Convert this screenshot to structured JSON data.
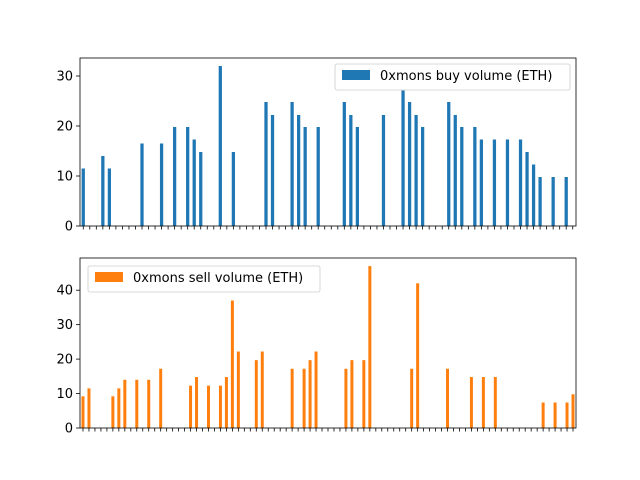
{
  "chart_data": [
    {
      "type": "bar",
      "ylim": [
        0,
        33.6
      ],
      "yticks": [
        0,
        10,
        20,
        30
      ],
      "grid": false,
      "legend": "top-right",
      "series": [
        {
          "name": "0xmons buy volume (ETH)",
          "color": "#1f77b4",
          "values": [
            11.5,
            0,
            0,
            14,
            11.5,
            0,
            0,
            0,
            0,
            16.5,
            0,
            0,
            16.5,
            0,
            19.8,
            0,
            19.8,
            17.3,
            14.8,
            0,
            0,
            32,
            0,
            14.8,
            0,
            0,
            0,
            0,
            24.8,
            22.2,
            0,
            0,
            24.8,
            22.2,
            19.8,
            0,
            19.8,
            0,
            0,
            0,
            24.8,
            22.2,
            19.8,
            0,
            0,
            0,
            22.2,
            0,
            0,
            27.1,
            24.8,
            22.2,
            19.8,
            0,
            0,
            0,
            24.8,
            22.2,
            19.8,
            0,
            19.8,
            17.3,
            0,
            17.3,
            0,
            17.3,
            0,
            17.3,
            14.8,
            12.3,
            9.8,
            0,
            9.8,
            0,
            9.8,
            0
          ]
        }
      ]
    },
    {
      "type": "bar",
      "ylim": [
        0,
        49.35
      ],
      "yticks": [
        0,
        10,
        20,
        30,
        40
      ],
      "grid": false,
      "legend": "top-left",
      "series": [
        {
          "name": "0xmons sell volume (ETH)",
          "color": "#ff7f0e",
          "values": [
            9.2,
            11.5,
            0,
            0,
            0,
            9.2,
            11.5,
            14,
            0,
            14,
            0,
            14,
            0,
            17.2,
            0,
            0,
            0,
            0,
            12.3,
            14.8,
            0,
            12.3,
            0,
            12.3,
            14.8,
            37,
            22.2,
            0,
            0,
            19.7,
            22.2,
            0,
            0,
            0,
            0,
            17.2,
            0,
            17.2,
            19.7,
            22.2,
            0,
            0,
            0,
            0,
            17.2,
            19.7,
            0,
            19.7,
            47,
            0,
            0,
            0,
            0,
            0,
            0,
            17.2,
            42,
            0,
            0,
            0,
            0,
            17.2,
            0,
            0,
            0,
            14.8,
            0,
            14.8,
            0,
            14.8,
            0,
            0,
            0,
            0,
            0,
            0,
            0,
            7.4,
            0,
            7.4,
            0,
            7.4,
            9.8
          ]
        }
      ]
    }
  ]
}
